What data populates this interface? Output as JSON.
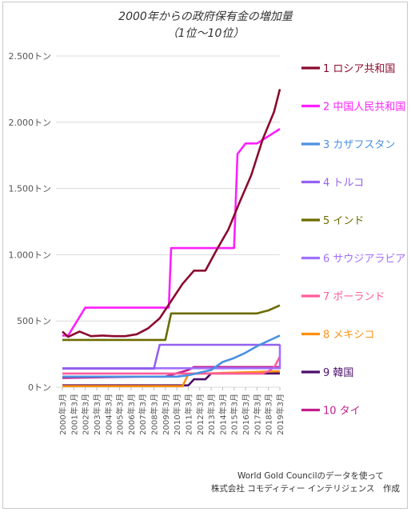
{
  "chart_data": {
    "type": "line",
    "title": "2000年からの政府保有金の増加量",
    "subtitle": "（1位〜10位）",
    "x": [
      "2000年3月",
      "2001年3月",
      "2002年3月",
      "2003年3月",
      "2004年3月",
      "2005年3月",
      "2006年3月",
      "2007年3月",
      "2008年3月",
      "2009年3月",
      "2010年3月",
      "2011年3月",
      "2012年3月",
      "2013年3月",
      "2014年3月",
      "2015年3月",
      "2016年3月",
      "2017年3月",
      "2018年3月",
      "2019年3月"
    ],
    "y_ticks": [
      "0トン",
      "500トン",
      "1.000トン",
      "1.500トン",
      "2.000トン",
      "2.500トン"
    ],
    "ylim": [
      0,
      2500
    ],
    "grid": true,
    "legend_position": "right",
    "series": [
      {
        "name": "1 ロシア共和国",
        "color": "#8b0a2e",
        "points": [
          [
            0,
            420
          ],
          [
            0.5,
            380
          ],
          [
            1.5,
            420
          ],
          [
            2.5,
            385
          ],
          [
            3.5,
            390
          ],
          [
            4.5,
            385
          ],
          [
            5.5,
            385
          ],
          [
            6.5,
            400
          ],
          [
            7.5,
            445
          ],
          [
            8.5,
            520
          ],
          [
            9.5,
            650
          ],
          [
            10.5,
            780
          ],
          [
            11.5,
            880
          ],
          [
            12.5,
            880
          ],
          [
            13.5,
            1040
          ],
          [
            14.5,
            1190
          ],
          [
            15.5,
            1400
          ],
          [
            16.5,
            1600
          ],
          [
            17.5,
            1870
          ],
          [
            18.5,
            2080
          ],
          [
            19.0,
            2250
          ]
        ]
      },
      {
        "name": "2 中国人民共和国",
        "color": "#ff1fff",
        "points": [
          [
            0,
            390
          ],
          [
            0.5,
            390
          ],
          [
            2,
            600
          ],
          [
            8.5,
            600
          ],
          [
            9.3,
            600
          ],
          [
            9.5,
            1050
          ],
          [
            15.0,
            1050
          ],
          [
            15.3,
            1760
          ],
          [
            16.0,
            1840
          ],
          [
            17.0,
            1840
          ],
          [
            19.0,
            1950
          ]
        ]
      },
      {
        "name": "3 カザフスタン",
        "color": "#4a90e2",
        "points": [
          [
            0,
            80
          ],
          [
            10.0,
            80
          ],
          [
            11.0,
            90
          ],
          [
            12.0,
            110
          ],
          [
            13.0,
            130
          ],
          [
            14.0,
            190
          ],
          [
            15.0,
            220
          ],
          [
            16.0,
            260
          ],
          [
            17.0,
            310
          ],
          [
            18.0,
            350
          ],
          [
            19.0,
            390
          ]
        ]
      },
      {
        "name": "4 トルコ",
        "color": "#9360f0",
        "points": [
          [
            0,
            140
          ],
          [
            8.0,
            140
          ],
          [
            8.5,
            320
          ],
          [
            19.0,
            320
          ]
        ]
      },
      {
        "name": "5 インド",
        "color": "#6b6b00",
        "points": [
          [
            0,
            357
          ],
          [
            9.0,
            357
          ],
          [
            9.5,
            557
          ],
          [
            17.0,
            557
          ],
          [
            18.0,
            580
          ],
          [
            19.0,
            618
          ]
        ]
      },
      {
        "name": "6 サウジアラビア",
        "color": "#a070ff",
        "points": [
          [
            0,
            143
          ],
          [
            19.0,
            143
          ],
          [
            19.0,
            323
          ]
        ]
      },
      {
        "name": "7 ポーランド",
        "color": "#ff5c9a",
        "points": [
          [
            0,
            103
          ],
          [
            17.5,
            103
          ],
          [
            18.0,
            120
          ],
          [
            18.5,
            150
          ],
          [
            19.0,
            230
          ]
        ]
      },
      {
        "name": "8 メキシコ",
        "color": "#ff9010",
        "points": [
          [
            0,
            8
          ],
          [
            10.5,
            8
          ],
          [
            11.0,
            100
          ],
          [
            19.0,
            120
          ]
        ]
      },
      {
        "name": "9 韓国",
        "color": "#4b0d6b",
        "points": [
          [
            0,
            14
          ],
          [
            11.0,
            14
          ],
          [
            11.5,
            60
          ],
          [
            12.5,
            60
          ],
          [
            13.0,
            104
          ],
          [
            19.0,
            104
          ]
        ]
      },
      {
        "name": "10 タイ",
        "color": "#c21e8c",
        "points": [
          [
            0,
            70
          ],
          [
            7.0,
            80
          ],
          [
            9.0,
            80
          ],
          [
            11.0,
            130
          ],
          [
            11.5,
            152
          ],
          [
            19.0,
            152
          ]
        ]
      }
    ],
    "source": "World Gold Councilのデータを使って",
    "author": "株式会社 コモディティー インテリジェンス　作成"
  }
}
